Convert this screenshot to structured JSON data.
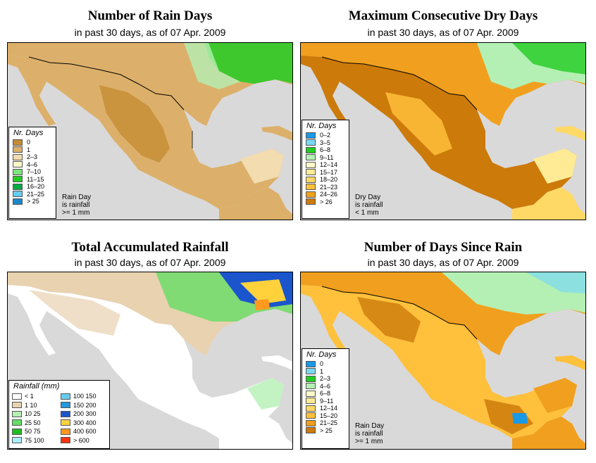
{
  "colors": {
    "land_dry": "#c68c33",
    "land_med": "#dcb06a",
    "land_light": "#f2dcb0",
    "water": "#d9d9d9",
    "green": "#22cc22",
    "lightgreen": "#7ce67c"
  },
  "panels": [
    {
      "title": "Number of Rain Days",
      "subtitle": "in past 30 days, as of  07 Apr. 2009",
      "legend_title": "Nr. Days",
      "legend": [
        {
          "label": "0",
          "color": "#c68c33"
        },
        {
          "label": "1",
          "color": "#dcb06a"
        },
        {
          "label": "2–3",
          "color": "#f2dcb0"
        },
        {
          "label": "4–6",
          "color": "#fff8c4"
        },
        {
          "label": "7–10",
          "color": "#7ce67c"
        },
        {
          "label": "11–15",
          "color": "#22cc22"
        },
        {
          "label": "16–20",
          "color": "#00aa44"
        },
        {
          "label": "21–25",
          "color": "#66ccf0"
        },
        {
          "label": "> 25",
          "color": "#1a88cc"
        }
      ],
      "note": [
        "Rain Day",
        "is rainfall",
        ">= 1 mm"
      ]
    },
    {
      "title": "Maximum Consecutive Dry Days",
      "subtitle": "in past 30 days, as of  07 Apr. 2009",
      "legend_title": "Nr. Days",
      "legend": [
        {
          "label": "0–2",
          "color": "#1a99e6"
        },
        {
          "label": "3–5",
          "color": "#7ad9f2"
        },
        {
          "label": "6–8",
          "color": "#22cc22"
        },
        {
          "label": "9–11",
          "color": "#b4f0b4"
        },
        {
          "label": "12–14",
          "color": "#fffac8"
        },
        {
          "label": "15–17",
          "color": "#ffeb96"
        },
        {
          "label": "18–20",
          "color": "#ffd966"
        },
        {
          "label": "21–23",
          "color": "#ffc03c"
        },
        {
          "label": "24–26",
          "color": "#f0a01e"
        },
        {
          "label": "> 26",
          "color": "#cc7a0a"
        }
      ],
      "note": [
        "Dry Day",
        "is rainfall",
        "< 1 mm"
      ]
    },
    {
      "title": "Total Accumulated Rainfall",
      "subtitle": "in past 30 days, as of  07 Apr. 2009",
      "legend_title": "Rainfall (mm)",
      "legend_left": [
        {
          "label": "< 1",
          "color": "#ffffff"
        },
        {
          "label": "1     10",
          "color": "#e8d2b0"
        },
        {
          "label": "10    25",
          "color": "#b4f0b4"
        },
        {
          "label": "25    50",
          "color": "#66dd66"
        },
        {
          "label": "50    75",
          "color": "#22bb22"
        },
        {
          "label": "75   100",
          "color": "#aaeeff"
        }
      ],
      "legend_right": [
        {
          "label": "100  150",
          "color": "#66ccf0"
        },
        {
          "label": "150  200",
          "color": "#2299e0"
        },
        {
          "label": "200  300",
          "color": "#1a55cc"
        },
        {
          "label": "300  400",
          "color": "#ffd23c"
        },
        {
          "label": "400  600",
          "color": "#ff9a1e"
        },
        {
          "label": "> 600",
          "color": "#ff3311"
        }
      ]
    },
    {
      "title": "Number of Days Since Rain",
      "subtitle": "in past 30 days, as of  07 Apr. 2009",
      "legend_title": "Nr. Days",
      "legend": [
        {
          "label": "0",
          "color": "#1a99e6"
        },
        {
          "label": "1",
          "color": "#7ad9f2"
        },
        {
          "label": "2–3",
          "color": "#22cc22"
        },
        {
          "label": "4–6",
          "color": "#b4f0b4"
        },
        {
          "label": "6–8",
          "color": "#fffac8"
        },
        {
          "label": "9–11",
          "color": "#ffeb96"
        },
        {
          "label": "12–14",
          "color": "#ffd966"
        },
        {
          "label": "15–20",
          "color": "#ffc03c"
        },
        {
          "label": "21–25",
          "color": "#f0a01e"
        },
        {
          "label": "> 25",
          "color": "#cc7a0a"
        }
      ],
      "note": [
        "Rain Day",
        "is rainfall",
        ">= 1 mm"
      ]
    }
  ]
}
